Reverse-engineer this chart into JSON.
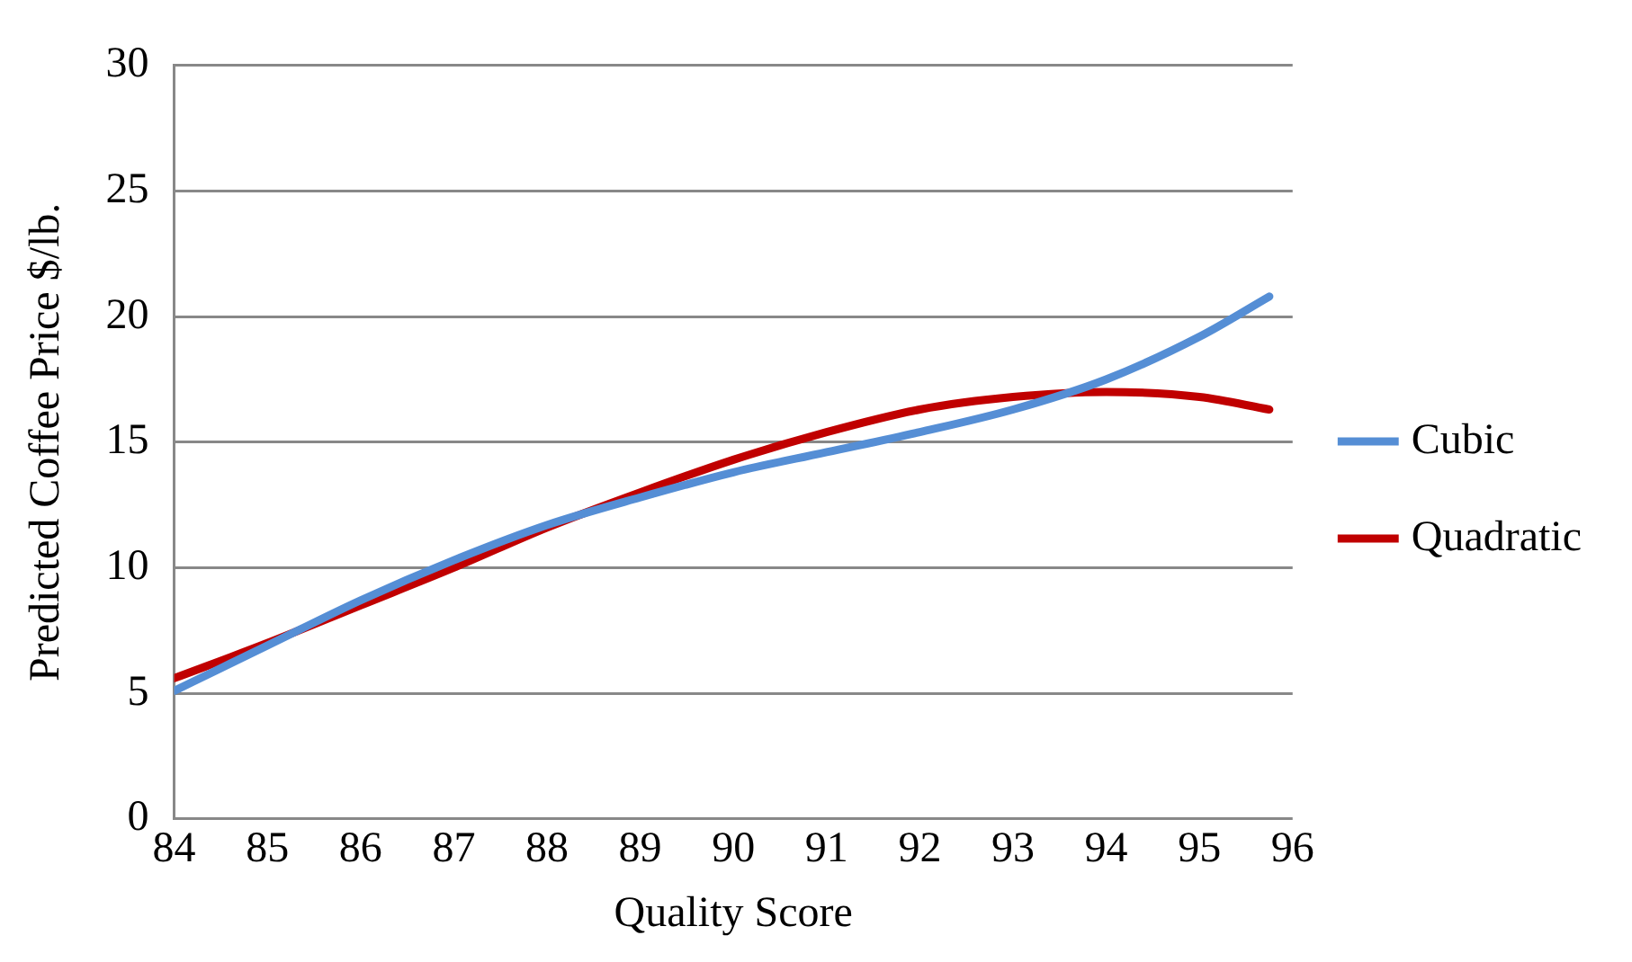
{
  "chart_data": {
    "type": "line",
    "xlabel": "Quality Score",
    "ylabel": "Predicted Coffee Price $/lb.",
    "xlim": [
      84,
      96
    ],
    "xticks": [
      84,
      85,
      86,
      87,
      88,
      89,
      90,
      91,
      92,
      93,
      94,
      95,
      96
    ],
    "ylim": [
      0,
      30
    ],
    "yticks": [
      0,
      5,
      10,
      15,
      20,
      25,
      30
    ],
    "x": [
      84,
      85,
      86,
      87,
      88,
      89,
      90,
      91,
      92,
      93,
      94,
      95,
      95.75
    ],
    "series": [
      {
        "name": "Cubic",
        "color": "#558ed5",
        "values": [
          5.1,
          6.9,
          8.7,
          10.3,
          11.7,
          12.8,
          13.8,
          14.6,
          15.4,
          16.3,
          17.5,
          19.2,
          20.8
        ]
      },
      {
        "name": "Quadratic",
        "color": "#c00000",
        "values": [
          5.6,
          7.0,
          8.5,
          10.0,
          11.6,
          13.0,
          14.3,
          15.4,
          16.3,
          16.8,
          17.0,
          16.8,
          16.3
        ]
      }
    ],
    "grid": "y",
    "legend": "right",
    "marker": "none",
    "line_style": "solid"
  }
}
